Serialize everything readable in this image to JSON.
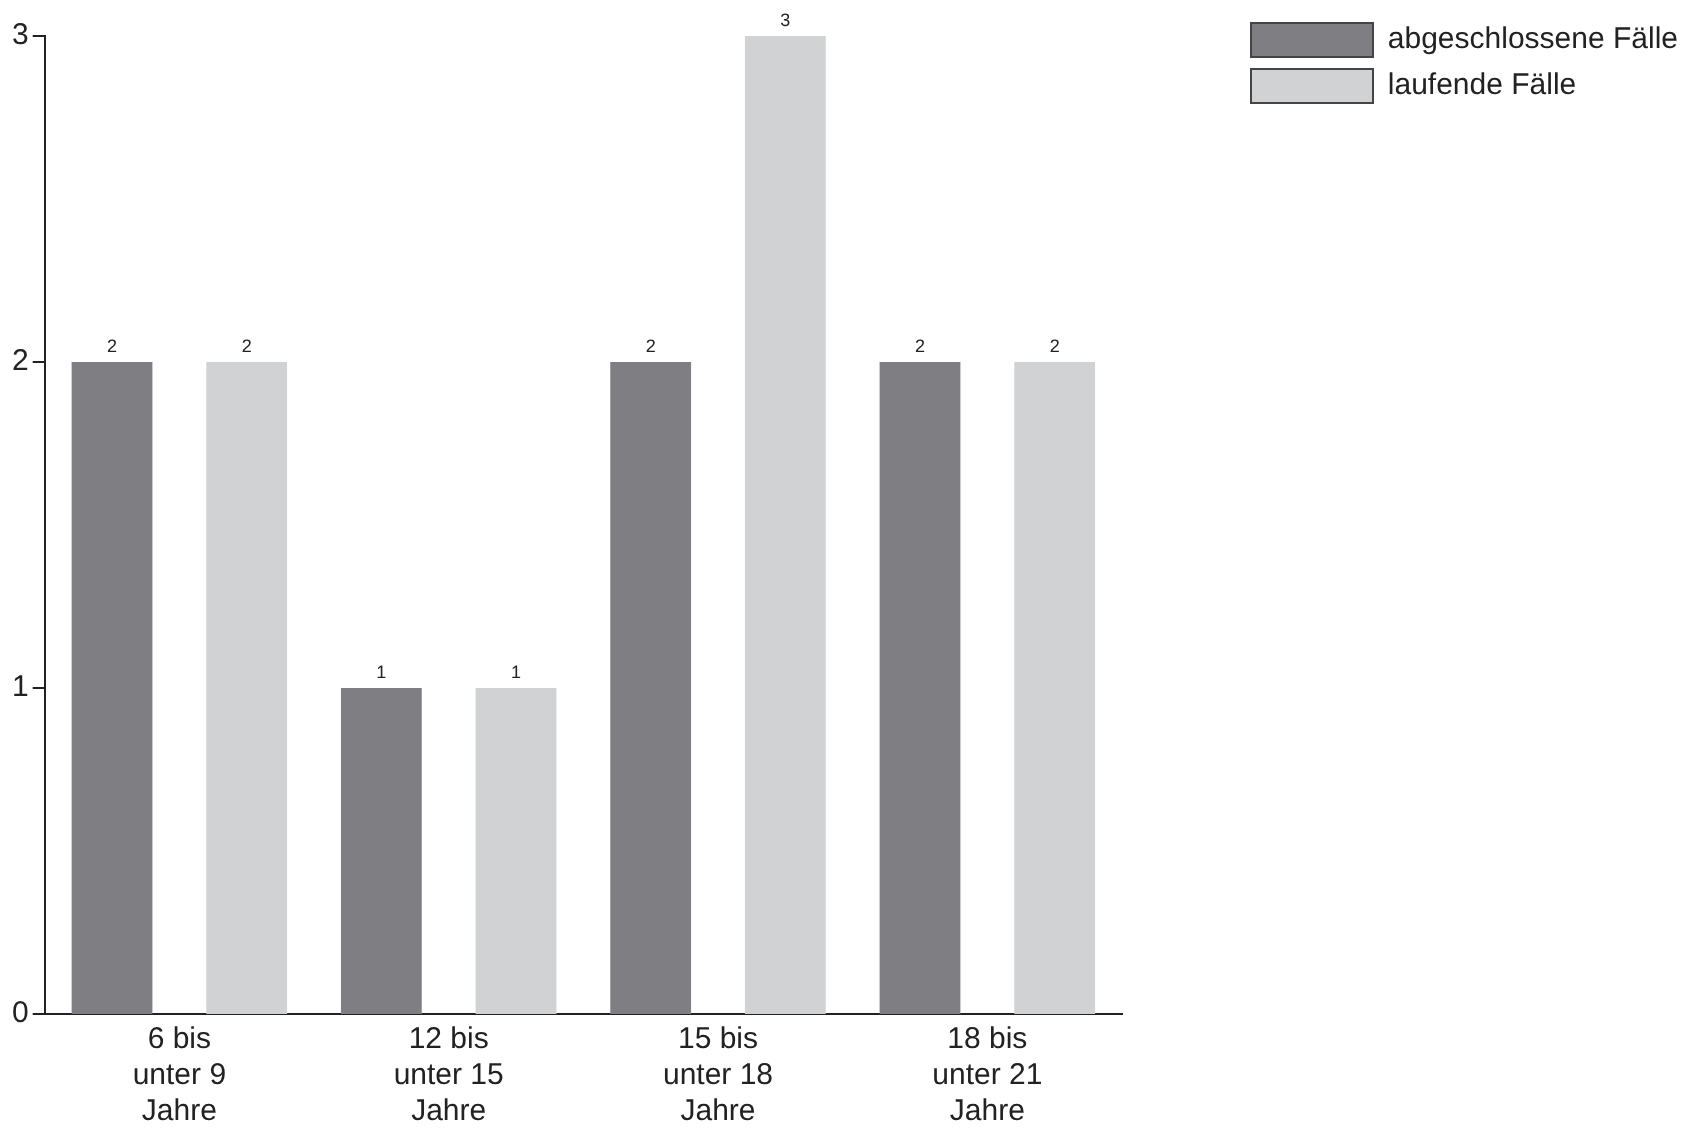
{
  "chart_data": {
    "type": "bar",
    "categories": [
      "6 bis\nunter 9\nJahre",
      "12 bis\nunter 15\nJahre",
      "15 bis\nunter 18\nJahre",
      "18 bis\nunter 21\nJahre"
    ],
    "series": [
      {
        "name": "abgeschlossene Fälle",
        "color": "#7f7f83",
        "values": [
          2,
          1,
          2,
          2
        ]
      },
      {
        "name": "laufende Fälle",
        "color": "#d1d2d4",
        "values": [
          2,
          1,
          3,
          2
        ]
      }
    ],
    "ylim": [
      0,
      3
    ],
    "yticks": [
      0,
      1,
      2,
      3
    ],
    "grid": false,
    "legend": "top right",
    "data_labels": true
  }
}
